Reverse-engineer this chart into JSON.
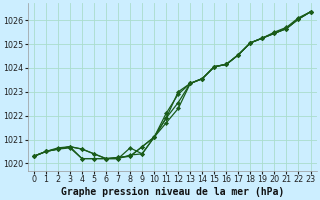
{
  "xlabel": "Graphe pression niveau de la mer (hPa)",
  "ylim": [
    1019.7,
    1026.7
  ],
  "xlim": [
    -0.5,
    23.5
  ],
  "yticks": [
    1020,
    1021,
    1022,
    1023,
    1024,
    1025,
    1026
  ],
  "xticks": [
    0,
    1,
    2,
    3,
    4,
    5,
    6,
    7,
    8,
    9,
    10,
    11,
    12,
    13,
    14,
    15,
    16,
    17,
    18,
    19,
    20,
    21,
    22,
    23
  ],
  "bg_color": "#cceeff",
  "grid_color": "#aaddcc",
  "line_color": "#1a5c1a",
  "series": {
    "line1": [
      1020.3,
      1020.5,
      1020.6,
      1020.65,
      1020.2,
      1020.2,
      1020.2,
      1020.2,
      1020.35,
      1020.4,
      1021.1,
      1021.9,
      1023.0,
      1023.35,
      1023.55,
      1024.05,
      1024.15,
      1024.55,
      1025.05,
      1025.25,
      1025.45,
      1025.65,
      1026.05,
      1026.35
    ],
    "line2": [
      1020.3,
      1020.5,
      1020.65,
      1020.7,
      1020.2,
      1020.2,
      1020.2,
      1020.2,
      1020.65,
      1020.4,
      1021.1,
      1021.9,
      1022.55,
      1023.35,
      1023.55,
      1024.05,
      1024.15,
      1024.55,
      1025.05,
      1025.25,
      1025.45,
      1025.65,
      1026.05,
      1026.35
    ],
    "line3": [
      1020.3,
      1020.5,
      1020.6,
      1020.7,
      1020.6,
      1020.4,
      1020.2,
      1020.25,
      1020.3,
      1020.7,
      1021.1,
      1022.1,
      1022.9,
      1023.35,
      1023.55,
      1024.05,
      1024.15,
      1024.55,
      1025.05,
      1025.25,
      1025.5,
      1025.7,
      1026.1,
      1026.35
    ],
    "line4": [
      1020.3,
      1020.5,
      1020.6,
      1020.7,
      1020.6,
      1020.4,
      1020.2,
      1020.25,
      1020.3,
      1020.7,
      1021.1,
      1021.7,
      1022.3,
      1023.35,
      1023.55,
      1024.05,
      1024.15,
      1024.55,
      1025.05,
      1025.25,
      1025.45,
      1025.65,
      1026.05,
      1026.35
    ]
  },
  "marker_size": 2.2,
  "line_width": 0.9,
  "tick_fontsize": 5.8,
  "label_fontsize": 7.0,
  "tick_label_color": "#222222"
}
